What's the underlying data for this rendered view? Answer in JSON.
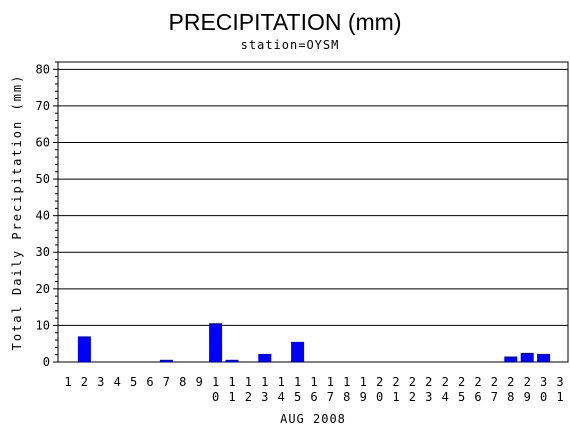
{
  "chart_data": {
    "type": "bar",
    "title": "PRECIPITATION (mm)",
    "subtitle": "station=OYSM",
    "xlabel": "AUG 2008",
    "ylabel": "Total Daily Precipitation (mm)",
    "ylim": [
      0,
      82
    ],
    "yticks": [
      0,
      10,
      20,
      30,
      40,
      50,
      60,
      70,
      80
    ],
    "grid": true,
    "bar_color": "#0000ff",
    "categories": [
      "1",
      "2",
      "3",
      "4",
      "5",
      "6",
      "7",
      "8",
      "9",
      "10",
      "11",
      "12",
      "13",
      "14",
      "15",
      "16",
      "17",
      "18",
      "19",
      "20",
      "21",
      "22",
      "23",
      "24",
      "25",
      "26",
      "27",
      "28",
      "29",
      "30",
      "31"
    ],
    "values": [
      0,
      7.0,
      0,
      0,
      0,
      0,
      0.6,
      0,
      0,
      10.6,
      0.6,
      0,
      2.2,
      0,
      5.5,
      0,
      0,
      0,
      0,
      0,
      0,
      0,
      0,
      0,
      0,
      0,
      0,
      1.5,
      2.5,
      2.2,
      0
    ]
  }
}
